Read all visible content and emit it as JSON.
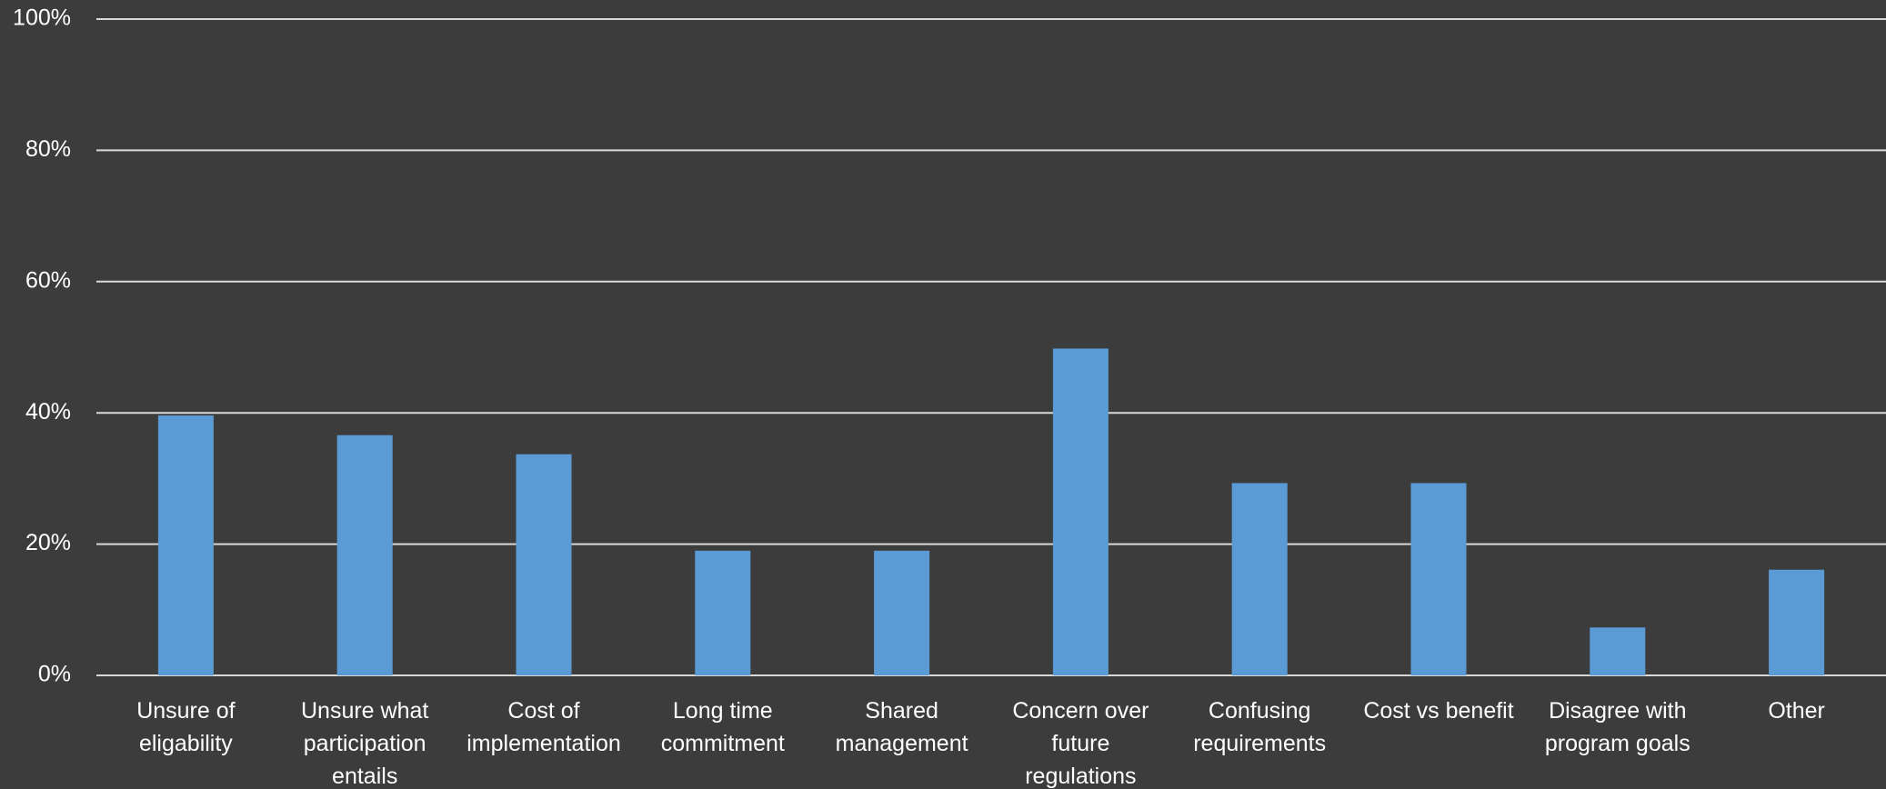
{
  "chart_data": {
    "type": "bar",
    "categories": [
      "Unsure of eligability",
      "Unsure what participation entails",
      "Cost of implementation",
      "Long time commitment",
      "Shared management",
      "Concern over future regulations",
      "Confusing requirements",
      "Cost vs benefit",
      "Disagree with program goals",
      "Other"
    ],
    "values": [
      39.6,
      36.6,
      33.7,
      19.0,
      19.0,
      49.8,
      29.3,
      29.3,
      7.3,
      16.1
    ],
    "color": "#5b9bd5",
    "ylim": [
      0,
      100
    ],
    "yticks": [
      {
        "value": 0,
        "label": "0%"
      },
      {
        "value": 20,
        "label": "20%"
      },
      {
        "value": 40,
        "label": "40%"
      },
      {
        "value": 60,
        "label": "60%"
      },
      {
        "value": 80,
        "label": "80%"
      },
      {
        "value": 100,
        "label": "100%"
      }
    ],
    "grid": true
  }
}
